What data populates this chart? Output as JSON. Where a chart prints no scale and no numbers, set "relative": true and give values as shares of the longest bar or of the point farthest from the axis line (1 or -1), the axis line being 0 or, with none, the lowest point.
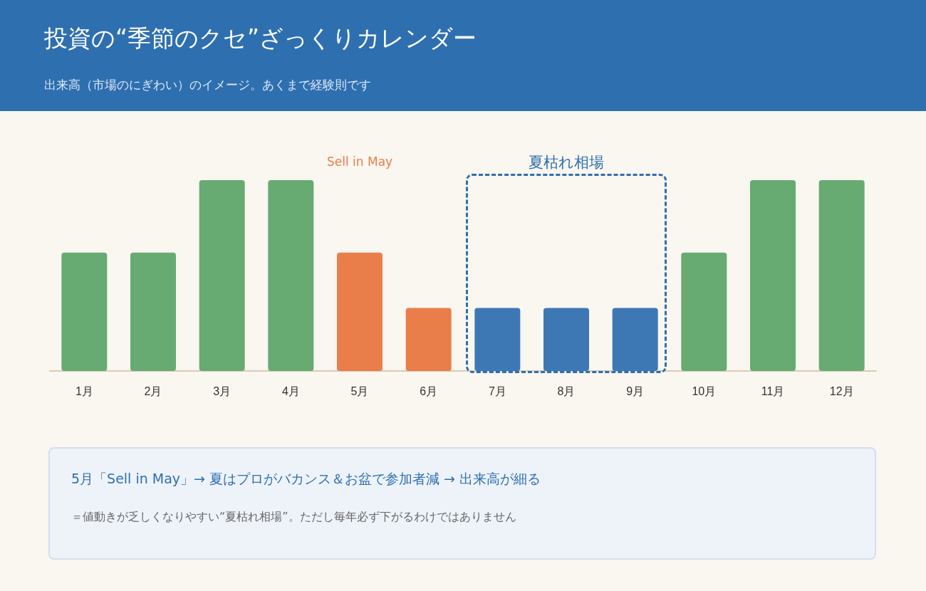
{
  "chart_data": {
    "type": "bar",
    "title": "投資の“季節のクセ”ざっくりカレンダー",
    "subtitle": "出来高（市場のにぎわい）のイメージ。あくまで経験則です",
    "categories": [
      "1月",
      "2月",
      "3月",
      "4月",
      "5月",
      "6月",
      "7月",
      "8月",
      "9月",
      "10月",
      "11月",
      "12月"
    ],
    "values": [
      0.62,
      0.62,
      1,
      1,
      0.62,
      0.33,
      0.33,
      0.33,
      0.33,
      0.62,
      1,
      1
    ],
    "colors": [
      "#67ab72",
      "#67ab72",
      "#67ab72",
      "#67ab72",
      "#e97e4a",
      "#e97e4a",
      "#3d78b5",
      "#3d78b5",
      "#3d78b5",
      "#67ab72",
      "#67ab72",
      "#67ab72"
    ],
    "relative": true,
    "annotations": [
      "Sell in May",
      "夏枯れ相場",
      "5月「Sell in May」→ 夏はプロがバカンス＆お盆で参加者減 → 出来高が細る",
      "＝値動きが乏しくなりやすい“夏枯れ相場”。ただし毎年必ず下がるわけではありません"
    ]
  }
}
